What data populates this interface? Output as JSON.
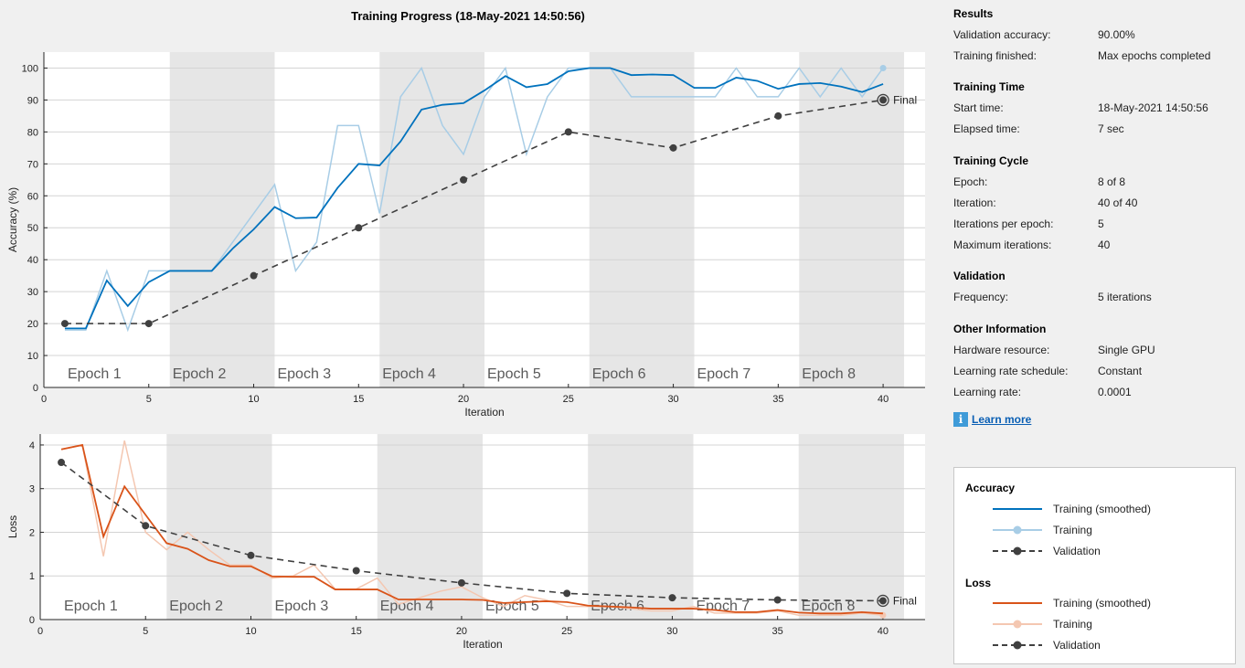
{
  "title": "Training Progress (18-May-2021 14:50:56)",
  "colors": {
    "acc_smoothed": "#0072bd",
    "acc_training": "#a8cde6",
    "loss_smoothed": "#d95319",
    "loss_training": "#f4c7b1",
    "validation": "#404040",
    "epoch_shade": "#e6e6e6"
  },
  "epoch_labels": [
    "Epoch 1",
    "Epoch 2",
    "Epoch 3",
    "Epoch 4",
    "Epoch 5",
    "Epoch 6",
    "Epoch 7",
    "Epoch 8"
  ],
  "final_label": "Final",
  "chart_data": [
    {
      "type": "line",
      "xlabel": "Iteration",
      "ylabel": "Accuracy (%)",
      "xlim": [
        0,
        42
      ],
      "ylim": [
        0,
        105
      ],
      "xticks": [
        0,
        5,
        10,
        15,
        20,
        25,
        30,
        35,
        40
      ],
      "yticks": [
        0,
        10,
        20,
        30,
        40,
        50,
        60,
        70,
        80,
        90,
        100
      ],
      "grid": true,
      "series": [
        {
          "name": "Training (smoothed)",
          "x": [
            1,
            2,
            3,
            4,
            5,
            6,
            7,
            8,
            9,
            10,
            11,
            12,
            13,
            14,
            15,
            16,
            17,
            18,
            19,
            20,
            21,
            22,
            23,
            24,
            25,
            26,
            27,
            28,
            29,
            30,
            31,
            32,
            33,
            34,
            35,
            36,
            37,
            38,
            39,
            40
          ],
          "values": [
            18.5,
            18.5,
            33.5,
            25.5,
            33,
            36.5,
            36.5,
            36.5,
            43.5,
            49.5,
            56.5,
            53,
            53.2,
            62.5,
            70,
            69.5,
            77,
            87,
            88.5,
            89,
            93,
            97.5,
            94,
            95,
            99,
            100,
            100,
            97.8,
            98,
            97.8,
            93.8,
            93.8,
            97,
            96,
            93.5,
            95,
            95.3,
            94.2,
            92.5,
            95
          ]
        },
        {
          "name": "Training",
          "x": [
            1,
            2,
            3,
            4,
            5,
            6,
            7,
            8,
            9,
            10,
            11,
            12,
            13,
            14,
            15,
            16,
            17,
            18,
            19,
            20,
            21,
            22,
            23,
            24,
            25,
            26,
            27,
            28,
            29,
            30,
            31,
            32,
            33,
            34,
            35,
            36,
            37,
            38,
            39,
            40
          ],
          "values": [
            18,
            18,
            36.5,
            18,
            36.5,
            36.5,
            36.5,
            36.5,
            45.5,
            54.5,
            63.5,
            36.5,
            45.5,
            82,
            82,
            54.5,
            91,
            100,
            82,
            73,
            91,
            100,
            73,
            91,
            100,
            100,
            100,
            91,
            91,
            91,
            91,
            91,
            100,
            91,
            91,
            100,
            91,
            100,
            91,
            100
          ]
        },
        {
          "name": "Validation",
          "x": [
            1,
            5,
            10,
            15,
            20,
            25,
            30,
            35,
            40
          ],
          "values": [
            20,
            20,
            35,
            50,
            65,
            80,
            75,
            85,
            90
          ]
        }
      ]
    },
    {
      "type": "line",
      "xlabel": "Iteration",
      "ylabel": "Loss",
      "xlim": [
        0,
        42
      ],
      "ylim": [
        0,
        4.25
      ],
      "xticks": [
        0,
        5,
        10,
        15,
        20,
        25,
        30,
        35,
        40
      ],
      "yticks": [
        0,
        1,
        2,
        3,
        4
      ],
      "grid": true,
      "series": [
        {
          "name": "Training (smoothed)",
          "x": [
            1,
            2,
            3,
            4,
            5,
            6,
            7,
            8,
            9,
            10,
            11,
            12,
            13,
            14,
            15,
            16,
            17,
            18,
            19,
            20,
            21,
            22,
            23,
            24,
            25,
            26,
            27,
            28,
            29,
            30,
            31,
            32,
            33,
            34,
            35,
            36,
            37,
            38,
            39,
            40
          ],
          "values": [
            3.9,
            4.0,
            1.9,
            3.05,
            2.4,
            1.75,
            1.62,
            1.36,
            1.22,
            1.22,
            0.99,
            0.98,
            0.98,
            0.69,
            0.69,
            0.69,
            0.46,
            0.46,
            0.46,
            0.46,
            0.45,
            0.38,
            0.4,
            0.42,
            0.4,
            0.32,
            0.3,
            0.28,
            0.25,
            0.25,
            0.25,
            0.22,
            0.17,
            0.17,
            0.22,
            0.16,
            0.14,
            0.14,
            0.17,
            0.14
          ]
        },
        {
          "name": "Training",
          "x": [
            1,
            2,
            3,
            4,
            5,
            6,
            7,
            8,
            9,
            10,
            11,
            12,
            13,
            14,
            15,
            16,
            17,
            18,
            19,
            20,
            21,
            22,
            23,
            24,
            25,
            26,
            27,
            28,
            29,
            30,
            31,
            32,
            33,
            34,
            35,
            36,
            37,
            38,
            39,
            40
          ],
          "values": [
            3.9,
            4.0,
            1.45,
            4.1,
            2.0,
            1.6,
            2.0,
            1.6,
            1.25,
            1.25,
            0.95,
            1.0,
            1.25,
            0.7,
            0.7,
            0.95,
            0.35,
            0.5,
            0.65,
            0.75,
            0.5,
            0.3,
            0.55,
            0.45,
            0.3,
            0.3,
            0.3,
            0.25,
            0.2,
            0.2,
            0.3,
            0.15,
            0.15,
            0.15,
            0.2,
            0.1,
            0.1,
            0.1,
            0.15,
            0.1
          ]
        },
        {
          "name": "Validation",
          "x": [
            1,
            5,
            10,
            15,
            20,
            25,
            30,
            35,
            40
          ],
          "values": [
            3.6,
            2.15,
            1.47,
            1.12,
            0.84,
            0.6,
            0.5,
            0.45,
            0.43
          ]
        }
      ]
    }
  ],
  "results": {
    "title": "Results",
    "rows": [
      {
        "label": "Validation accuracy:",
        "value": "90.00%"
      },
      {
        "label": "Training finished:",
        "value": "Max epochs completed"
      }
    ]
  },
  "training_time": {
    "title": "Training Time",
    "rows": [
      {
        "label": "Start time:",
        "value": "18-May-2021 14:50:56"
      },
      {
        "label": "Elapsed time:",
        "value": "7 sec"
      }
    ]
  },
  "training_cycle": {
    "title": "Training Cycle",
    "rows": [
      {
        "label": "Epoch:",
        "value": "8 of 8"
      },
      {
        "label": "Iteration:",
        "value": "40 of 40"
      },
      {
        "label": "Iterations per epoch:",
        "value": "5"
      },
      {
        "label": "Maximum iterations:",
        "value": "40"
      }
    ]
  },
  "validation": {
    "title": "Validation",
    "rows": [
      {
        "label": "Frequency:",
        "value": "5 iterations"
      }
    ]
  },
  "other_info": {
    "title": "Other Information",
    "rows": [
      {
        "label": "Hardware resource:",
        "value": "Single GPU"
      },
      {
        "label": "Learning rate schedule:",
        "value": "Constant"
      },
      {
        "label": "Learning rate:",
        "value": "0.0001"
      }
    ]
  },
  "learn_more": {
    "icon": "info-icon",
    "label": "Learn more"
  },
  "legend": {
    "accuracy_title": "Accuracy",
    "loss_title": "Loss",
    "items": [
      "Training (smoothed)",
      "Training",
      "Validation"
    ]
  }
}
